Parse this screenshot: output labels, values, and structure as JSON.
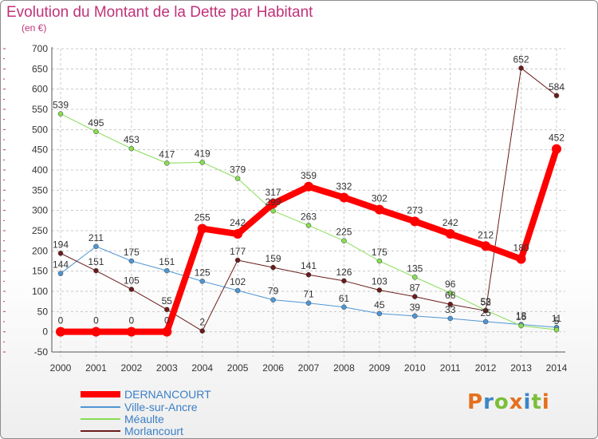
{
  "title": "Evolution du Montant de la Dette par Habitant",
  "subtitle": "(en €)",
  "logo": {
    "text": "Proxiti",
    "colors": [
      "#e4701e",
      "#3b86c8",
      "#7bbf3a",
      "#e4701e",
      "#3b86c8",
      "#7bbf3a",
      "#e4701e"
    ]
  },
  "chart_data": {
    "type": "line",
    "x": [
      "2000",
      "2001",
      "2002",
      "2003",
      "2004",
      "2005",
      "2006",
      "2007",
      "2008",
      "2009",
      "2010",
      "2011",
      "2012",
      "2013",
      "2014"
    ],
    "yticks": [
      "-50",
      "0",
      "50",
      "100",
      "150",
      "200",
      "250",
      "300",
      "350",
      "400",
      "450",
      "500",
      "550",
      "600",
      "650",
      "700"
    ],
    "ylim": [
      -50,
      700
    ],
    "grid": true,
    "legend_position": "bottom-left",
    "series": [
      {
        "name": "DERNANCOURT",
        "color": "#ff0000",
        "width": 8,
        "values": [
          0,
          0,
          0,
          0,
          255,
          242,
          317,
          359,
          332,
          302,
          273,
          242,
          212,
          180,
          452
        ],
        "labels": [
          "0",
          "0",
          "0",
          "0",
          "255",
          "242",
          "317",
          "359",
          "332",
          "302",
          "273",
          "242",
          "212",
          "180",
          "452"
        ]
      },
      {
        "name": "Ville-sur-Ancre",
        "color": "#4f96d4",
        "width": 1,
        "values": [
          144,
          211,
          175,
          151,
          125,
          102,
          79,
          71,
          61,
          45,
          39,
          33,
          25,
          18,
          11
        ],
        "labels": [
          "144",
          "211",
          "175",
          "151",
          "125",
          "102",
          "79",
          "71",
          "61",
          "45",
          "39",
          "33",
          "25",
          "18",
          "11"
        ]
      },
      {
        "name": "Méaulte",
        "color": "#88dd55",
        "width": 1,
        "values": [
          539,
          495,
          453,
          417,
          419,
          379,
          299,
          263,
          225,
          175,
          135,
          96,
          53,
          15,
          5
        ],
        "labels": [
          "539",
          "495",
          "453",
          "417",
          "419",
          "379",
          "299",
          "263",
          "225",
          "175",
          "135",
          "96",
          "53",
          "15",
          "5"
        ]
      },
      {
        "name": "Morlancourt",
        "color": "#6b1c1c",
        "width": 1,
        "values": [
          194,
          151,
          105,
          55,
          2,
          177,
          159,
          141,
          126,
          103,
          87,
          68,
          52,
          652,
          584
        ],
        "labels": [
          "194",
          "151",
          "105",
          "55",
          "2",
          "177",
          "159",
          "141",
          "126",
          "103",
          "87",
          "68",
          "52",
          "652",
          "584"
        ]
      }
    ]
  }
}
